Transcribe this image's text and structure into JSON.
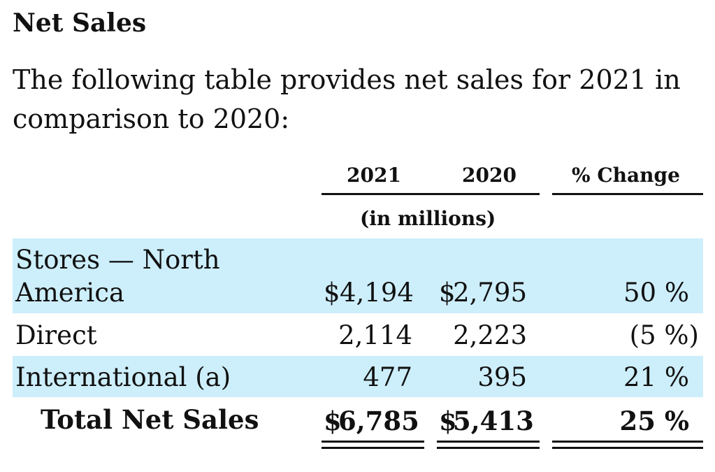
{
  "title": "Net Sales",
  "intro": "The following table provides net sales for 2021 in comparison to 2020:",
  "colors": {
    "row_band": "#cdeefb",
    "text": "#111111"
  },
  "table": {
    "headers": {
      "year1": "2021",
      "year2": "2020",
      "change": "% Change",
      "units": "(in millions)"
    },
    "rows": [
      {
        "label_line1": "Stores — North",
        "label_line2": "America",
        "cur_sym": "$",
        "y2021": "4,194",
        "prev_sym": "$",
        "y2020": "2,795",
        "change": "50 %"
      },
      {
        "label": "Direct",
        "y2021": "2,114",
        "y2020": "2,223",
        "change": "(5 %)"
      },
      {
        "label": "International (a)",
        "y2021": "477",
        "y2020": "395",
        "change": "21 %"
      }
    ],
    "total": {
      "label": "Total Net Sales",
      "cur_sym": "$",
      "y2021": "6,785",
      "prev_sym": "$",
      "y2020": "5,413",
      "change": "25 %"
    }
  }
}
